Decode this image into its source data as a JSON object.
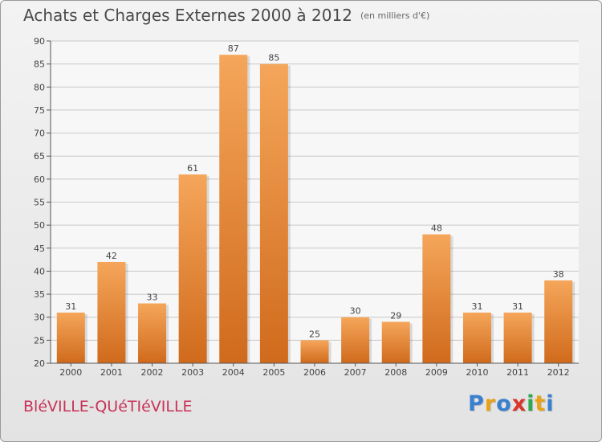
{
  "header": {
    "title": "Achats et Charges Externes 2000 à 2012",
    "subtitle": "(en milliers d'€)"
  },
  "footer": {
    "commune": "BléVILLE-QUéTIéVILLE",
    "logo_letters": [
      {
        "ch": "P",
        "color": "#3a7fd0"
      },
      {
        "ch": "r",
        "color": "#e8a21a"
      },
      {
        "ch": "o",
        "color": "#3a7fd0"
      },
      {
        "ch": "x",
        "color": "#d9352a"
      },
      {
        "ch": "i",
        "color": "#2fa84f"
      },
      {
        "ch": "t",
        "color": "#e8a21a"
      },
      {
        "ch": "i",
        "color": "#3a7fd0"
      }
    ]
  },
  "chart_data": {
    "type": "bar",
    "categories": [
      "2000",
      "2001",
      "2002",
      "2003",
      "2004",
      "2005",
      "2006",
      "2007",
      "2008",
      "2009",
      "2010",
      "2011",
      "2012"
    ],
    "values": [
      31,
      42,
      33,
      61,
      87,
      85,
      25,
      30,
      29,
      48,
      31,
      31,
      38
    ],
    "ylim": [
      20,
      90
    ],
    "yticks": [
      20,
      25,
      30,
      35,
      40,
      45,
      50,
      55,
      60,
      65,
      70,
      75,
      80,
      85,
      90
    ],
    "grid": true,
    "bar_color_top": "#f5a65a",
    "bar_color_bottom": "#d06a1c"
  }
}
